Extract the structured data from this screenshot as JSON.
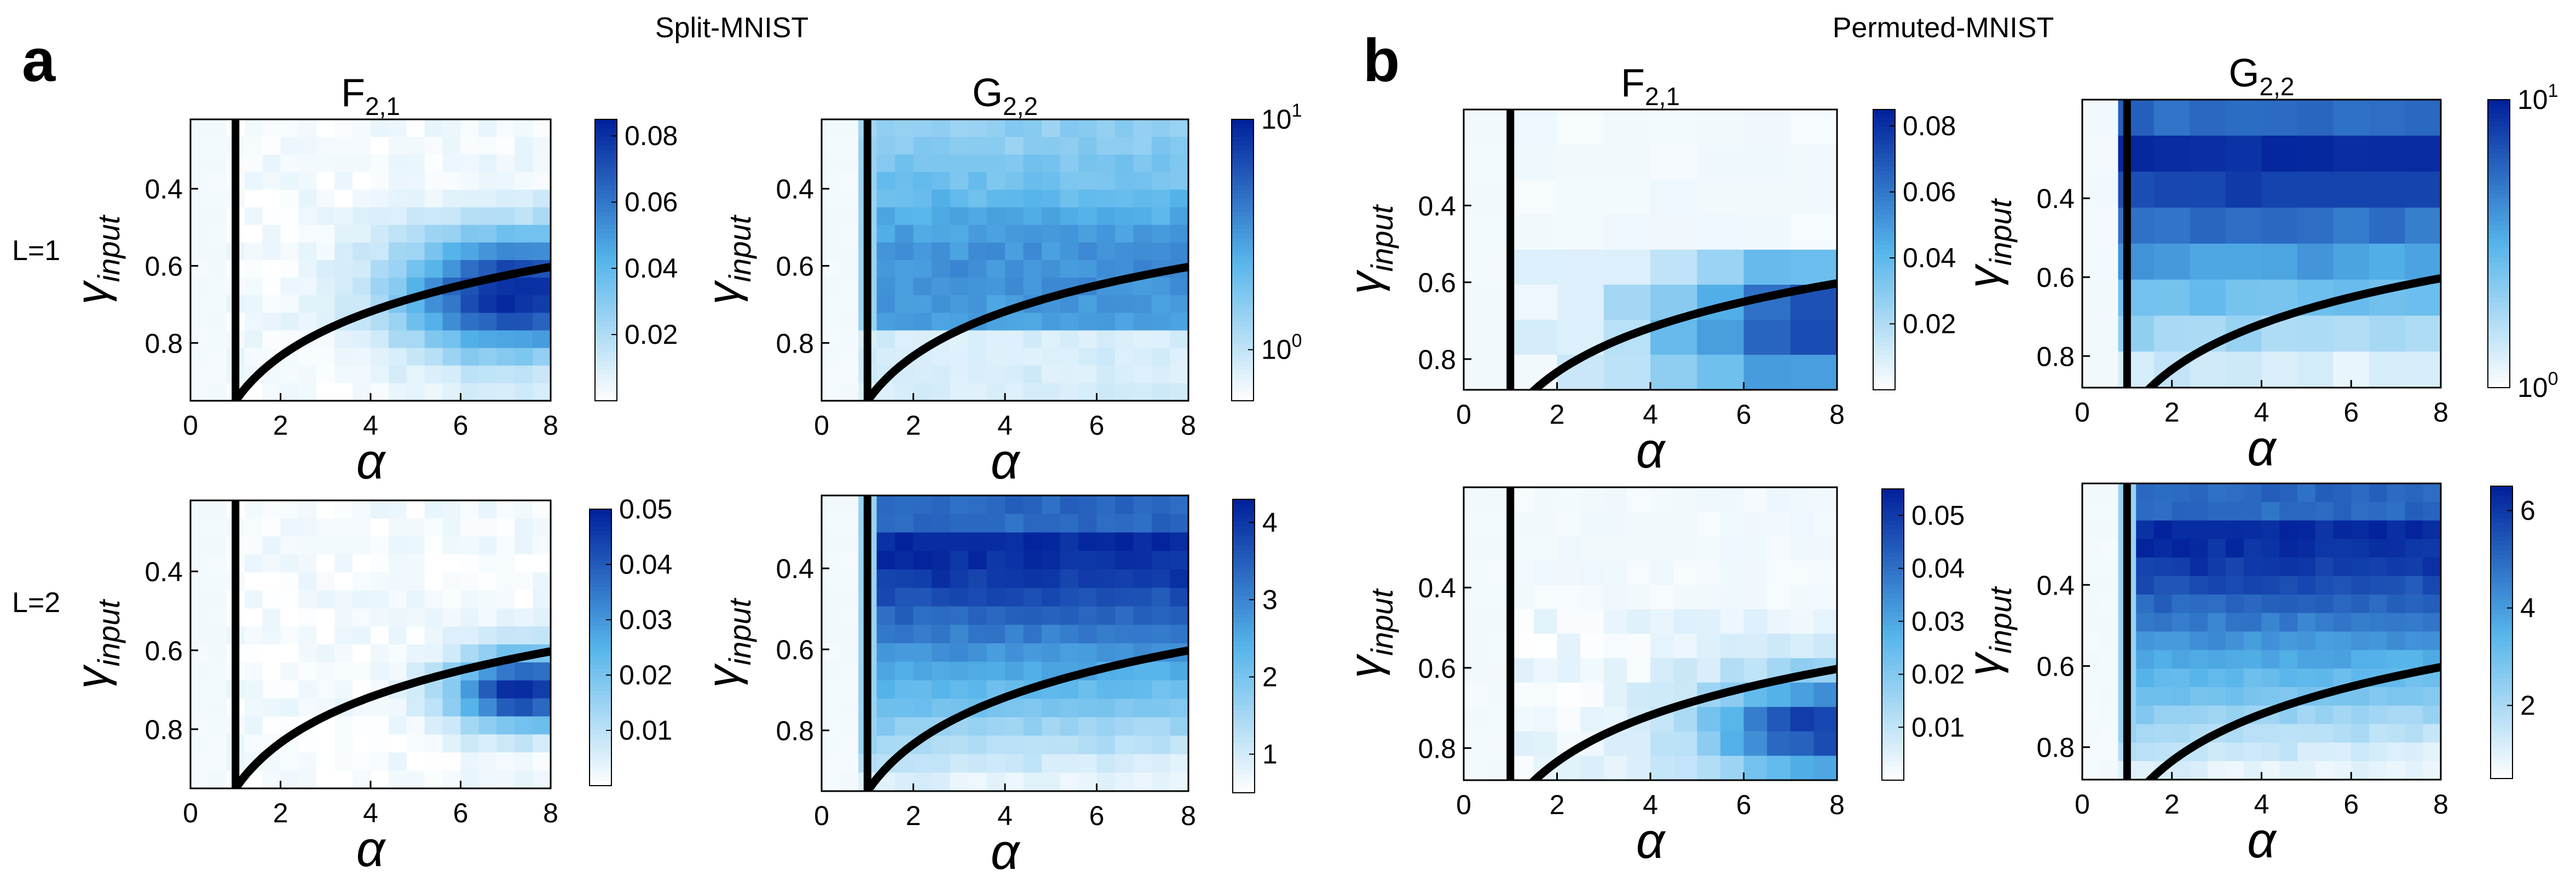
{
  "figure": {
    "groups": [
      {
        "letter": "a",
        "title": "Split-MNIST"
      },
      {
        "letter": "b",
        "title": "Permuted-MNIST"
      }
    ],
    "row_labels": [
      "L=1",
      "L=2"
    ],
    "colormap": {
      "low": "#ffffff",
      "mid": "#55b4ea",
      "high": "#001f9a"
    },
    "boundary_color": "#000000"
  },
  "chart_data": [
    {
      "id": "a-F21-L1",
      "group": "a",
      "type": "heatmap",
      "title_main": "F",
      "title_sub": "2,1",
      "xlabel": "α",
      "ylabel_main": "γ",
      "ylabel_sub": "input",
      "xlim": [
        0,
        8
      ],
      "ylim": [
        0.95,
        0.22
      ],
      "xticks": [
        0,
        2,
        4,
        6,
        8
      ],
      "yticks": [
        0.4,
        0.6,
        0.8
      ],
      "grid": {
        "nx": 20,
        "ny": 16,
        "pattern": "lowright",
        "peak_x": 0.9,
        "peak_y": 0.62
      },
      "colorbar": {
        "scale": "linear",
        "min": 0,
        "max": 0.085,
        "ticks": [
          0.02,
          0.04,
          0.06,
          0.08
        ],
        "tick_labels": [
          "0.02",
          "0.04",
          "0.06",
          "0.08"
        ]
      }
    },
    {
      "id": "a-G22-L1",
      "group": "a",
      "type": "heatmap",
      "title_main": "G",
      "title_sub": "2,2",
      "xlabel": "α",
      "ylabel_main": "γ",
      "ylabel_sub": "input",
      "xlim": [
        0,
        8
      ],
      "ylim": [
        0.95,
        0.22
      ],
      "xticks": [
        0,
        2,
        4,
        6,
        8
      ],
      "yticks": [
        0.4,
        0.6,
        0.8
      ],
      "grid": {
        "nx": 20,
        "ny": 16,
        "pattern": "band",
        "peak_y": 0.55
      },
      "colorbar": {
        "scale": "log",
        "min": 0.6,
        "max": 10,
        "ticks": [
          1,
          10
        ],
        "tick_labels": [
          {
            "base": "10",
            "exp": "0"
          },
          {
            "base": "10",
            "exp": "1"
          }
        ]
      }
    },
    {
      "id": "b-F21-L1",
      "group": "b",
      "type": "heatmap",
      "title_main": "F",
      "title_sub": "2,1",
      "xlabel": "α",
      "ylabel_main": "γ",
      "ylabel_sub": "input",
      "xlim": [
        0,
        8
      ],
      "ylim": [
        0.88,
        0.15
      ],
      "xticks": [
        0,
        2,
        4,
        6,
        8
      ],
      "yticks": [
        0.4,
        0.6,
        0.8
      ],
      "grid": {
        "nx": 8,
        "ny": 8,
        "pattern": "bottomright",
        "peak_x": 0.97,
        "peak_y": 0.78
      },
      "colorbar": {
        "scale": "linear",
        "min": 0,
        "max": 0.085,
        "ticks": [
          0.02,
          0.04,
          0.06,
          0.08
        ],
        "tick_labels": [
          "0.02",
          "0.04",
          "0.06",
          "0.08"
        ]
      }
    },
    {
      "id": "b-G22-L1",
      "group": "b",
      "type": "heatmap",
      "title_main": "G",
      "title_sub": "2,2",
      "xlabel": "α",
      "ylabel_main": "γ",
      "ylabel_sub": "input",
      "xlim": [
        0,
        8
      ],
      "ylim": [
        0.88,
        0.15
      ],
      "xticks": [
        0,
        2,
        4,
        6,
        8
      ],
      "yticks": [
        0.4,
        0.6,
        0.8
      ],
      "grid": {
        "nx": 10,
        "ny": 8,
        "pattern": "upper"
      },
      "colorbar": {
        "scale": "log",
        "min": 1,
        "max": 10,
        "ticks": [
          1,
          10
        ],
        "tick_labels": [
          {
            "base": "10",
            "exp": "0"
          },
          {
            "base": "10",
            "exp": "1"
          }
        ]
      }
    },
    {
      "id": "a-F21-L2",
      "group": "a",
      "type": "heatmap",
      "title_main": "",
      "title_sub": "",
      "xlabel": "α",
      "ylabel_main": "γ",
      "ylabel_sub": "input",
      "xlim": [
        0,
        8
      ],
      "ylim": [
        0.95,
        0.22
      ],
      "xticks": [
        0,
        2,
        4,
        6,
        8
      ],
      "yticks": [
        0.4,
        0.6,
        0.8
      ],
      "grid": {
        "nx": 20,
        "ny": 16,
        "pattern": "lowright",
        "peak_x": 0.92,
        "peak_y": 0.66,
        "spread": 0.6
      },
      "colorbar": {
        "scale": "linear",
        "min": 0,
        "max": 0.05,
        "ticks": [
          0.01,
          0.02,
          0.03,
          0.04,
          0.05
        ],
        "tick_labels": [
          "0.01",
          "0.02",
          "0.03",
          "0.04",
          "0.05"
        ]
      }
    },
    {
      "id": "a-G22-L2",
      "group": "a",
      "type": "heatmap",
      "title_main": "",
      "title_sub": "",
      "xlabel": "α",
      "ylabel_main": "γ",
      "ylabel_sub": "input",
      "xlim": [
        0,
        8
      ],
      "ylim": [
        0.95,
        0.22
      ],
      "xticks": [
        0,
        2,
        4,
        6,
        8
      ],
      "yticks": [
        0.4,
        0.6,
        0.8
      ],
      "grid": {
        "nx": 20,
        "ny": 16,
        "pattern": "upper"
      },
      "colorbar": {
        "scale": "linear",
        "min": 0.5,
        "max": 4.3,
        "ticks": [
          1,
          2,
          3,
          4
        ],
        "tick_labels": [
          "1",
          "2",
          "3",
          "4"
        ]
      }
    },
    {
      "id": "b-F21-L2",
      "group": "b",
      "type": "heatmap",
      "title_main": "",
      "title_sub": "",
      "xlabel": "α",
      "ylabel_main": "γ",
      "ylabel_sub": "input",
      "xlim": [
        0,
        8
      ],
      "ylim": [
        0.88,
        0.15
      ],
      "xticks": [
        0,
        2,
        4,
        6,
        8
      ],
      "yticks": [
        0.4,
        0.6,
        0.8
      ],
      "grid": {
        "nx": 16,
        "ny": 12,
        "pattern": "bottomright",
        "peak_x": 0.96,
        "peak_y": 0.82,
        "spread": 0.7
      },
      "colorbar": {
        "scale": "linear",
        "min": 0,
        "max": 0.055,
        "ticks": [
          0.01,
          0.02,
          0.03,
          0.04,
          0.05
        ],
        "tick_labels": [
          "0.01",
          "0.02",
          "0.03",
          "0.04",
          "0.05"
        ]
      }
    },
    {
      "id": "b-G22-L2",
      "group": "b",
      "type": "heatmap",
      "title_main": "",
      "title_sub": "",
      "xlabel": "α",
      "ylabel_main": "γ",
      "ylabel_sub": "input",
      "xlim": [
        0,
        8
      ],
      "ylim": [
        0.88,
        0.15
      ],
      "xticks": [
        0,
        2,
        4,
        6,
        8
      ],
      "yticks": [
        0.4,
        0.6,
        0.8
      ],
      "grid": {
        "nx": 20,
        "ny": 16,
        "pattern": "upper"
      },
      "colorbar": {
        "scale": "linear",
        "min": 0.5,
        "max": 6.5,
        "ticks": [
          2,
          4,
          6
        ],
        "tick_labels": [
          "2",
          "4",
          "6"
        ]
      }
    }
  ]
}
